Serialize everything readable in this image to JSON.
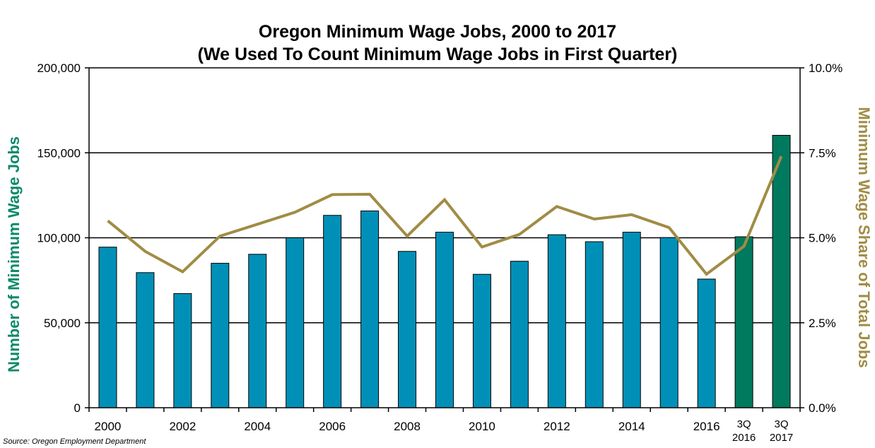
{
  "chart_data": {
    "type": "bar",
    "title": "Oregon Minimum Wage Jobs, 2000 to 2017",
    "subtitle": "(We Used To Count Minimum Wage Jobs in First Quarter)",
    "ylabel": "Number of Minimum Wage Jobs",
    "y2label": "Minimum Wage Share of Total Jobs",
    "ylim": [
      0,
      200000
    ],
    "y2lim": [
      0,
      10.0
    ],
    "yticks": [
      "0",
      "50,000",
      "100,000",
      "150,000",
      "200,000"
    ],
    "y2ticks": [
      "0.0%",
      "2.5%",
      "5.0%",
      "7.5%",
      "10.0%"
    ],
    "categories": [
      "2000",
      "2001",
      "2002",
      "2003",
      "2004",
      "2005",
      "2006",
      "2007",
      "2008",
      "2009",
      "2010",
      "2011",
      "2012",
      "2013",
      "2014",
      "2015",
      "2016",
      "3Q 2016",
      "3Q 2017"
    ],
    "category_labels": [
      "2000",
      "",
      "2002",
      "",
      "2004",
      "",
      "2006",
      "",
      "2008",
      "",
      "2010",
      "",
      "2012",
      "",
      "2014",
      "",
      "2016",
      "3Q\n2016",
      "3Q\n2017"
    ],
    "series": [
      {
        "type": "bar",
        "values": [
          94500,
          79500,
          67200,
          85000,
          90300,
          100000,
          113200,
          115800,
          92000,
          103300,
          78500,
          86200,
          101800,
          97700,
          103300,
          100100,
          75700,
          100600,
          160300
        ],
        "colors": [
          "#0090b7",
          "#0090b7",
          "#0090b7",
          "#0090b7",
          "#0090b7",
          "#0090b7",
          "#0090b7",
          "#0090b7",
          "#0090b7",
          "#0090b7",
          "#0090b7",
          "#0090b7",
          "#0090b7",
          "#0090b7",
          "#0090b7",
          "#0090b7",
          "#0090b7",
          "#007a5e",
          "#007a5e"
        ]
      },
      {
        "type": "line",
        "axis": "right",
        "values": [
          5.5,
          4.6,
          4.0,
          5.05,
          5.4,
          5.75,
          6.27,
          6.28,
          5.05,
          6.12,
          4.73,
          5.1,
          5.92,
          5.55,
          5.68,
          5.3,
          3.93,
          4.75,
          7.4
        ],
        "color": "#a08c45"
      }
    ],
    "grid": true,
    "legend": "none"
  },
  "source": "Source: Oregon Employment Department",
  "colors": {
    "bar": "#0090b7",
    "bar_highlight": "#007a5e",
    "line": "#a08c45",
    "left_axis_title": "#0b8a6a",
    "right_axis_title": "#a08c45"
  }
}
